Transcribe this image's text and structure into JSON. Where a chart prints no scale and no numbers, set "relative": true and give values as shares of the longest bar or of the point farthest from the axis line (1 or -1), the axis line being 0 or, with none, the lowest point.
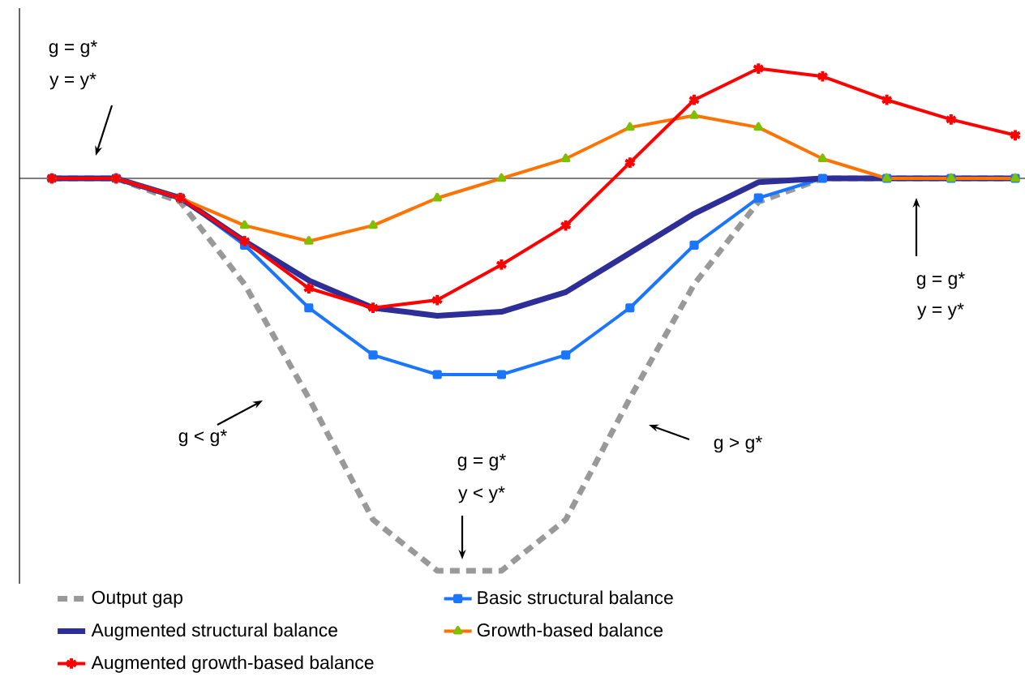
{
  "chart_data": {
    "type": "line",
    "relative": true,
    "categories": [
      null,
      null,
      null,
      null,
      null,
      null,
      null,
      null,
      null,
      null,
      null,
      null,
      null,
      null,
      null,
      null
    ],
    "series": [
      {
        "name": "Output gap",
        "color": "#999999",
        "line_style": "dashed",
        "marker": "none",
        "values": [
          0,
          0,
          -0.06,
          -0.27,
          -0.56,
          -0.87,
          -1,
          -1,
          -0.87,
          -0.56,
          -0.27,
          -0.06,
          0,
          0,
          0,
          0
        ]
      },
      {
        "name": "Basic structural balance",
        "color": "#1a75ff",
        "line_style": "solid",
        "marker": "square",
        "values": [
          0,
          0,
          -0.05,
          -0.17,
          -0.33,
          -0.45,
          -0.5,
          -0.5,
          -0.45,
          -0.33,
          -0.17,
          -0.05,
          0,
          0,
          0,
          0
        ]
      },
      {
        "name": "Augmented structural balance",
        "color": "#2e2e99",
        "line_style": "solid",
        "marker": "none",
        "values": [
          0,
          0,
          -0.05,
          -0.16,
          -0.26,
          -0.33,
          -0.35,
          -0.34,
          -0.29,
          -0.19,
          -0.09,
          -0.01,
          0,
          0,
          0,
          0
        ]
      },
      {
        "name": "Growth-based balance",
        "color": "#ff7300",
        "line_style": "solid",
        "marker": "triangle",
        "values": [
          0,
          0,
          -0.05,
          -0.12,
          -0.16,
          -0.12,
          -0.05,
          0,
          0.05,
          0.13,
          0.16,
          0.13,
          0.05,
          0,
          0,
          0
        ]
      },
      {
        "name": "Augmented growth-based balance",
        "color": "#ff0000",
        "line_style": "solid",
        "marker": "cross",
        "values": [
          0,
          0,
          -0.05,
          -0.16,
          -0.28,
          -0.33,
          -0.31,
          -0.22,
          -0.12,
          0.04,
          0.2,
          0.28,
          0.26,
          0.2,
          0.15,
          0.11
        ]
      }
    ],
    "annotations": [
      "g = g*",
      "y = y*",
      "g = g*",
      "y = y*",
      "g < g*",
      "g = g*",
      "y < y*",
      "g > g*"
    ],
    "legend": "bottom"
  }
}
